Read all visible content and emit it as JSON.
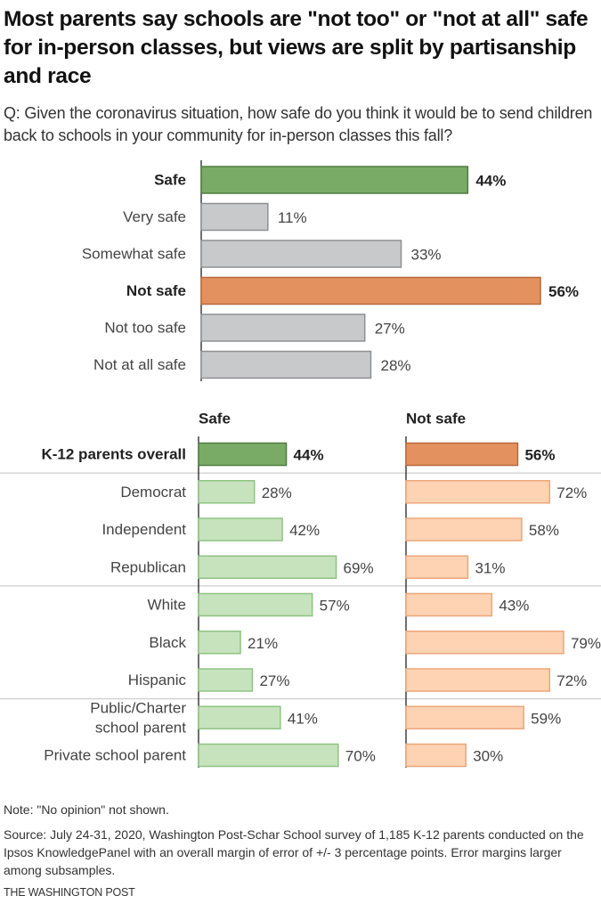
{
  "title": "Most parents say schools are \"not too\" or \"not at all\" safe for in-person classes, but views are split by partisanship and race",
  "question": "Q: Given the coronavirus situation, how safe do you think it would be to send children back to schools in your community for in-person classes this fall?",
  "note": "Note: \"No opinion\" not shown.",
  "source": "Source: July 24-31, 2020, Washington Post-Schar School survey of 1,185 K-12 parents conducted on the Ipsos KnowledgePanel with an overall margin of error of +/- 3 percentage points. Error margins larger among subsamples.",
  "credit": "THE WASHINGTON POST",
  "colors": {
    "safe_dark": "#7aab66",
    "safe_dark_stroke": "#4f7d3f",
    "safe_light": "#c6e3bd",
    "safe_light_stroke": "#8fc382",
    "notsafe_dark": "#e3925f",
    "notsafe_dark_stroke": "#b8683a",
    "notsafe_light": "#fdd3b3",
    "notsafe_light_stroke": "#eba77b",
    "gray": "#c8c9cb",
    "gray_stroke": "#8f9092"
  },
  "chart_data": [
    {
      "type": "bar",
      "orientation": "horizontal",
      "title": "Overall safety rating",
      "unit": "%",
      "categories": [
        "Safe",
        "Very safe",
        "Somewhat safe",
        "Not safe",
        "Not too safe",
        "Not at all safe"
      ],
      "values": [
        44,
        11,
        33,
        56,
        27,
        28
      ],
      "labels": [
        "44%",
        "11%",
        "33%",
        "56%",
        "27%",
        "28%"
      ],
      "bold": [
        true,
        false,
        false,
        true,
        false,
        false
      ],
      "styles": [
        "safe",
        "gray",
        "gray",
        "notsafe",
        "gray",
        "gray"
      ],
      "xlim": [
        0,
        56
      ]
    },
    {
      "type": "bar",
      "orientation": "horizontal",
      "title": "By group",
      "unit": "%",
      "column_headers": [
        "Safe",
        "Not safe"
      ],
      "categories": [
        "K-12 parents overall",
        "Democrat",
        "Independent",
        "Republican",
        "White",
        "Black",
        "Hispanic",
        "Public/Charter school parent",
        "Private school parent"
      ],
      "category_lines": [
        [
          "K-12 parents overall"
        ],
        [
          "Democrat"
        ],
        [
          "Independent"
        ],
        [
          "Republican"
        ],
        [
          "White"
        ],
        [
          "Black"
        ],
        [
          "Hispanic"
        ],
        [
          "Public/Charter",
          "school parent"
        ],
        [
          "Private school parent"
        ]
      ],
      "groups_separated_after": [
        0,
        3,
        6
      ],
      "series": [
        {
          "name": "Safe",
          "values": [
            44,
            28,
            42,
            69,
            57,
            21,
            27,
            41,
            70
          ],
          "labels": [
            "44%",
            "28%",
            "42%",
            "69%",
            "57%",
            "21%",
            "27%",
            "41%",
            "70%"
          ]
        },
        {
          "name": "Not safe",
          "values": [
            56,
            72,
            58,
            31,
            43,
            79,
            72,
            59,
            30
          ],
          "labels": [
            "56%",
            "72%",
            "58%",
            "31%",
            "43%",
            "79%",
            "72%",
            "59%",
            "30%"
          ]
        }
      ],
      "bold_rows": [
        0
      ],
      "xlim": [
        0,
        80
      ]
    }
  ]
}
